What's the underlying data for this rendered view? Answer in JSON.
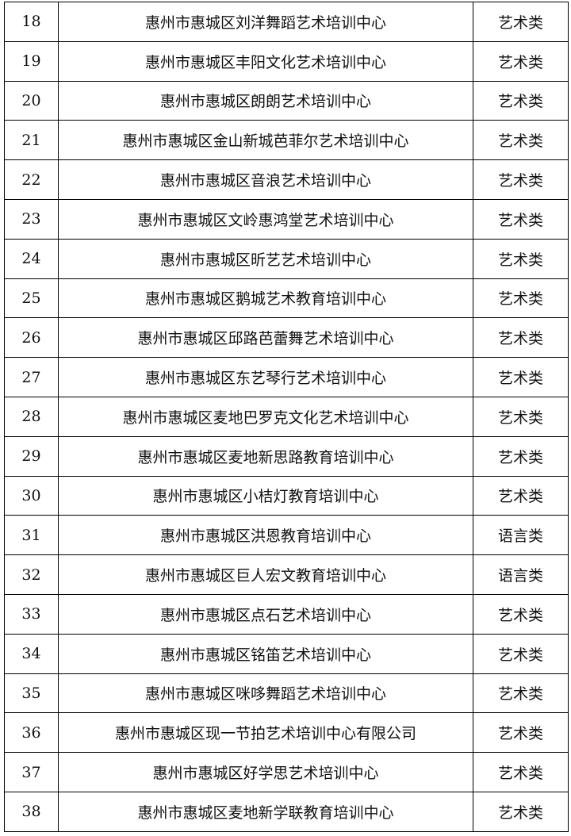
{
  "table": {
    "rows": [
      [
        "18",
        "惠州市惠城区刘洋舞蹈艺术培训中心",
        "艺术类"
      ],
      [
        "19",
        "惠州市惠城区丰阳文化艺术培训中心",
        "艺术类"
      ],
      [
        "20",
        "惠州市惠城区朗朗艺术培训中心",
        "艺术类"
      ],
      [
        "21",
        "惠州市惠城区金山新城芭菲尔艺术培训中心",
        "艺术类"
      ],
      [
        "22",
        "惠州市惠城区音浪艺术培训中心",
        "艺术类"
      ],
      [
        "23",
        "惠州市惠城区文岭惠鸿堂艺术培训中心",
        "艺术类"
      ],
      [
        "24",
        "惠州市惠城区昕艺艺术培训中心",
        "艺术类"
      ],
      [
        "25",
        "惠州市惠城区鹅城艺术教育培训中心",
        "艺术类"
      ],
      [
        "26",
        "惠州市惠城区邱路芭蕾舞艺术培训中心",
        "艺术类"
      ],
      [
        "27",
        "惠州市惠城区东艺琴行艺术培训中心",
        "艺术类"
      ],
      [
        "28",
        "惠州市惠城区麦地巴罗克文化艺术培训中心",
        "艺术类"
      ],
      [
        "29",
        "惠州市惠城区麦地新思路教育培训中心",
        "艺术类"
      ],
      [
        "30",
        "惠州市惠城区小桔灯教育培训中心",
        "艺术类"
      ],
      [
        "31",
        "惠州市惠城区洪恩教育培训中心",
        "语言类"
      ],
      [
        "32",
        "惠州市惠城区巨人宏文教育培训中心",
        "语言类"
      ],
      [
        "33",
        "惠州市惠城区点石艺术培训中心",
        "艺术类"
      ],
      [
        "34",
        "惠州市惠城区铭笛艺术培训中心",
        "艺术类"
      ],
      [
        "35",
        "惠州市惠城区咪哆舞蹈艺术培训中心",
        "艺术类"
      ],
      [
        "36",
        "惠州市惠城区现一节拍艺术培训中心有限公司",
        "艺术类"
      ],
      [
        "37",
        "惠州市惠城区好学思艺术培训中心",
        "艺术类"
      ],
      [
        "38",
        "惠州市惠城区麦地新学联教育培训中心",
        "艺术类"
      ]
    ]
  }
}
